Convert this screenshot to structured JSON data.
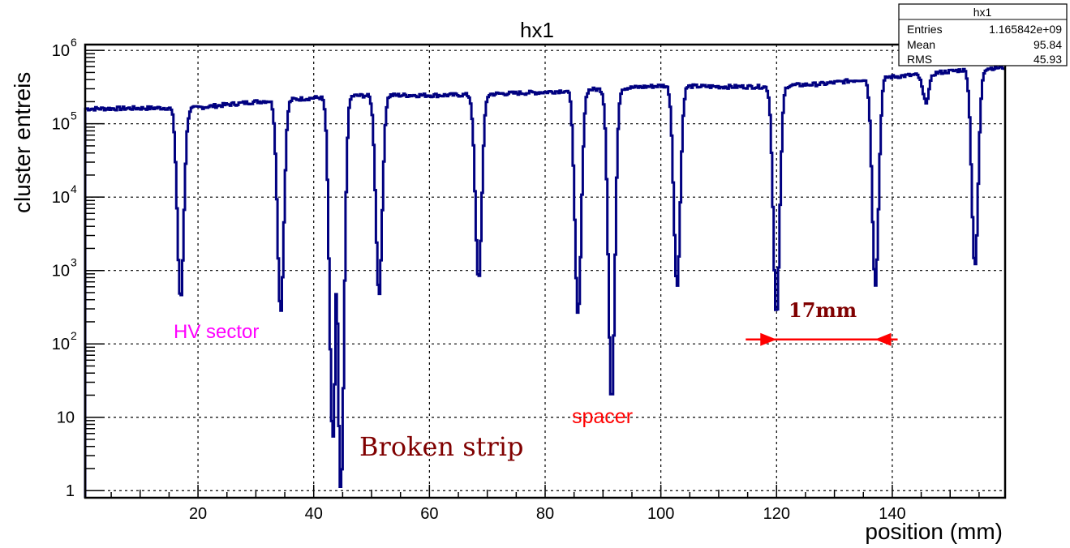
{
  "chart_data": {
    "type": "line",
    "title": "hx1",
    "xlabel": "position (mm)",
    "ylabel": "cluster entreis",
    "xlim": [
      0.5,
      159.5
    ],
    "ylim": [
      0.8,
      1200000
    ],
    "yscale": "log",
    "grid": true,
    "x_ticks": [
      20,
      40,
      60,
      80,
      100,
      120,
      140
    ],
    "x_tick_labels": [
      "20",
      "40",
      "60",
      "80",
      "100",
      "120",
      "140"
    ],
    "y_ticks": [
      1,
      10,
      100,
      1000,
      10000,
      100000,
      1000000
    ],
    "y_tick_labels": [
      {
        "base": "1",
        "exp": ""
      },
      {
        "base": "10",
        "exp": ""
      },
      {
        "base": "10",
        "exp": "2"
      },
      {
        "base": "10",
        "exp": "3"
      },
      {
        "base": "10",
        "exp": "4"
      },
      {
        "base": "10",
        "exp": "5"
      },
      {
        "base": "10",
        "exp": "6"
      }
    ],
    "series": [
      {
        "color": "#000080",
        "baseline": [
          {
            "x": 0.5,
            "y": 160000
          },
          {
            "x": 16,
            "y": 165000
          },
          {
            "x": 18,
            "y": 160000
          },
          {
            "x": 30,
            "y": 200000
          },
          {
            "x": 42,
            "y": 230000
          },
          {
            "x": 46,
            "y": 240000
          },
          {
            "x": 52,
            "y": 245000
          },
          {
            "x": 62,
            "y": 245000
          },
          {
            "x": 68,
            "y": 250000
          },
          {
            "x": 80,
            "y": 270000
          },
          {
            "x": 86,
            "y": 290000
          },
          {
            "x": 92,
            "y": 300000
          },
          {
            "x": 100,
            "y": 330000
          },
          {
            "x": 110,
            "y": 320000
          },
          {
            "x": 118,
            "y": 320000
          },
          {
            "x": 128,
            "y": 350000
          },
          {
            "x": 137,
            "y": 420000
          },
          {
            "x": 145,
            "y": 470000
          },
          {
            "x": 152,
            "y": 540000
          },
          {
            "x": 159.5,
            "y": 590000
          }
        ],
        "dips": [
          {
            "x": 17,
            "min": 400
          },
          {
            "x": 34.3,
            "min": 280
          },
          {
            "x": 43.3,
            "min": 5
          },
          {
            "x": 44.7,
            "min": 1
          },
          {
            "x": 51.3,
            "min": 480
          },
          {
            "x": 68.5,
            "min": 750
          },
          {
            "x": 85.7,
            "min": 240
          },
          {
            "x": 91.5,
            "min": 16
          },
          {
            "x": 102.8,
            "min": 600
          },
          {
            "x": 120,
            "min": 240
          },
          {
            "x": 137.1,
            "min": 650
          },
          {
            "x": 145.8,
            "min": 200000
          },
          {
            "x": 154.3,
            "min": 1100
          }
        ]
      }
    ],
    "stats": {
      "title": "hx1",
      "rows": [
        {
          "label": "Entries",
          "value": "1.165842e+09"
        },
        {
          "label": "Mean",
          "value": "95.84"
        },
        {
          "label": "RMS",
          "value": "45.93"
        }
      ]
    },
    "annotations": {
      "hv_sector": {
        "text": "HV sector",
        "color": "#ff00ff"
      },
      "broken_strip": {
        "text": "Broken  strip",
        "color": "#800000"
      },
      "spacer": {
        "text": "spacer",
        "color": "#ff0000"
      },
      "distance": {
        "text": "17mm",
        "color": "#800000",
        "arrow_color": "#ff0000",
        "from_x": 120,
        "to_x": 137,
        "y": 115
      }
    }
  }
}
